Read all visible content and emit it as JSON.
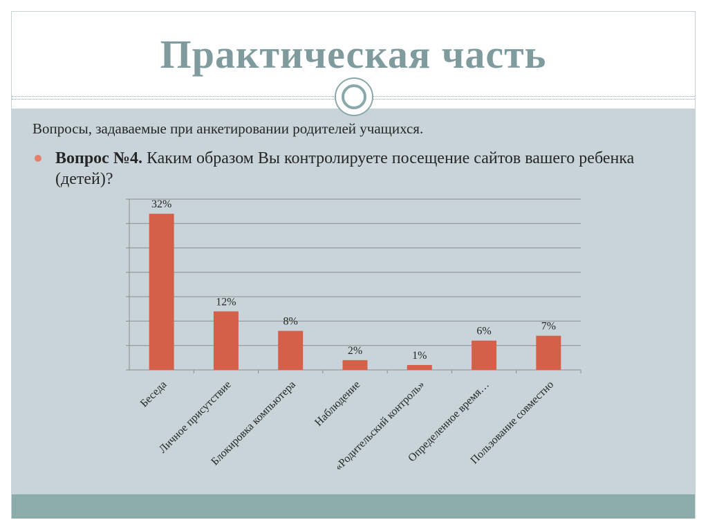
{
  "slide": {
    "title": "Практическая часть",
    "intro": "Вопросы, задаваемые при анкетировании родителей учащихся.",
    "question_label": "Вопрос №4.",
    "question_text": " Каким образом Вы контролируете посещение сайтов вашего ребенка (детей)?"
  },
  "colors": {
    "bar": "#d4604a",
    "title": "#7f9b9e",
    "content_bg": "#c8d4d9",
    "footer": "#8cacab"
  },
  "chart_data": {
    "type": "bar",
    "categories": [
      "Беседа",
      "Личное присутствие",
      "Блокировка компьютера",
      "Наблюдение",
      "«Родительский контроль»",
      "Определенное время…",
      "Пользование совместно"
    ],
    "values": [
      32,
      12,
      8,
      2,
      1,
      6,
      7
    ],
    "data_labels": [
      "32%",
      "12%",
      "8%",
      "2%",
      "1%",
      "6%",
      "7%"
    ],
    "ylim": [
      0,
      35
    ],
    "grid": true,
    "legend": "none"
  }
}
